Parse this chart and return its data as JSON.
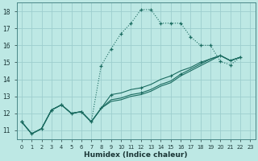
{
  "xlabel": "Humidex (Indice chaleur)",
  "bg_color": "#bde8e4",
  "grid_color": "#9dcece",
  "line_color": "#1a6b60",
  "xlim": [
    -0.5,
    23.5
  ],
  "ylim": [
    10.5,
    18.5
  ],
  "xticks": [
    0,
    1,
    2,
    3,
    4,
    5,
    6,
    7,
    8,
    9,
    10,
    11,
    12,
    13,
    14,
    15,
    16,
    17,
    18,
    19,
    20,
    21,
    22,
    23
  ],
  "yticks": [
    11,
    12,
    13,
    14,
    15,
    16,
    17,
    18
  ],
  "s1_x": [
    0,
    1,
    2,
    3,
    4,
    5,
    6,
    7,
    8,
    9,
    10,
    11,
    12,
    13,
    14,
    15,
    16,
    17,
    18,
    19,
    20,
    21,
    22
  ],
  "s1_y": [
    11.5,
    10.8,
    11.1,
    12.2,
    12.5,
    12.0,
    12.1,
    11.5,
    14.8,
    15.8,
    16.7,
    17.3,
    18.1,
    18.1,
    17.3,
    17.3,
    17.3,
    16.5,
    16.0,
    16.0,
    15.05,
    14.85,
    15.3
  ],
  "s2_x": [
    0,
    1,
    2,
    3,
    4,
    5,
    6,
    7,
    8,
    9,
    10,
    11,
    12,
    13,
    14,
    15,
    16,
    17,
    18,
    19,
    20,
    21,
    22
  ],
  "s2_y": [
    11.5,
    10.8,
    11.1,
    12.2,
    12.5,
    12.0,
    12.1,
    11.5,
    12.3,
    13.1,
    13.2,
    13.4,
    13.5,
    13.7,
    14.0,
    14.2,
    14.5,
    14.7,
    15.0,
    15.2,
    15.4,
    15.1,
    15.3
  ],
  "s3_x": [
    0,
    1,
    2,
    3,
    4,
    5,
    6,
    7,
    8,
    9,
    10,
    11,
    12,
    13,
    14,
    15,
    16,
    17,
    18,
    19,
    20,
    21,
    22
  ],
  "s3_y": [
    11.5,
    10.8,
    11.1,
    12.2,
    12.5,
    12.0,
    12.1,
    11.5,
    12.3,
    12.8,
    12.9,
    13.1,
    13.2,
    13.4,
    13.7,
    13.9,
    14.3,
    14.6,
    14.9,
    15.2,
    15.4,
    15.1,
    15.3
  ],
  "s4_x": [
    0,
    1,
    2,
    3,
    4,
    5,
    6,
    7,
    8,
    9,
    10,
    11,
    12,
    13,
    14,
    15,
    16,
    17,
    18,
    19,
    20,
    21,
    22
  ],
  "s4_y": [
    11.5,
    10.8,
    11.1,
    12.2,
    12.5,
    12.0,
    12.1,
    11.5,
    12.3,
    12.7,
    12.8,
    13.0,
    13.1,
    13.3,
    13.6,
    13.8,
    14.2,
    14.5,
    14.8,
    15.1,
    15.4,
    15.1,
    15.3
  ]
}
